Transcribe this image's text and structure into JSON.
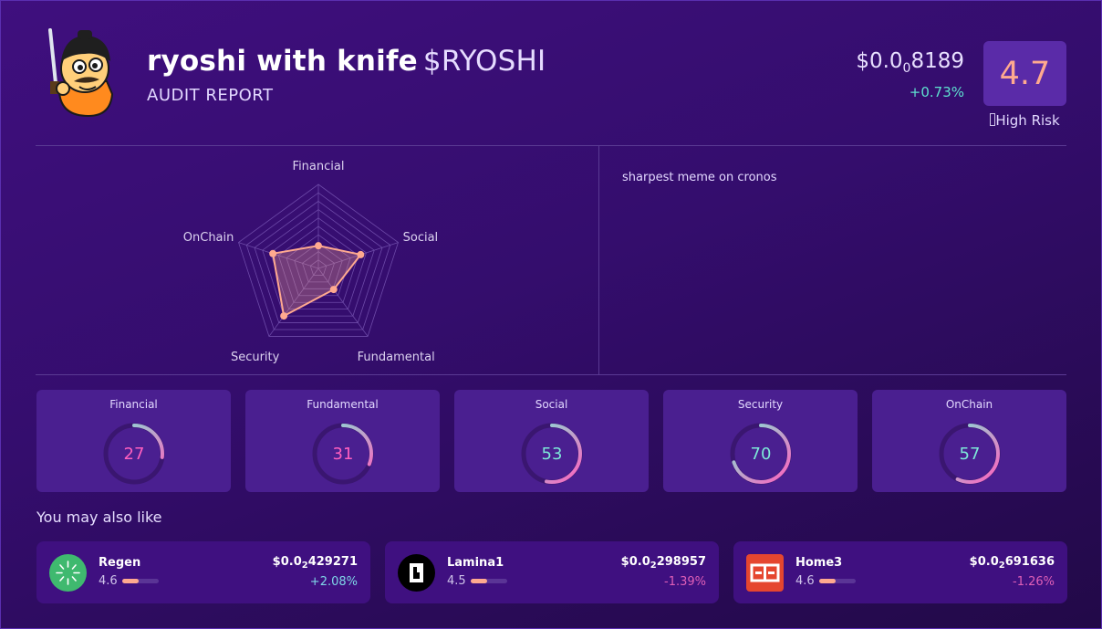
{
  "token": {
    "name": "ryoshi with knife",
    "ticker": "$RYOSHI",
    "subtitle": "AUDIT REPORT",
    "price_prefix": "$0.0",
    "price_zeros": "0",
    "price_digits": "8189",
    "change": "+0.73%",
    "score": "4.7",
    "risk": "High Risk",
    "risk_icon": "warning-icon",
    "description": "sharpest meme on cronos"
  },
  "radar": {
    "axes": [
      "Financial",
      "Social",
      "Fundamental",
      "Security",
      "OnChain"
    ],
    "values": [
      27,
      53,
      31,
      70,
      57
    ],
    "max": 100,
    "color": "#ffa98f"
  },
  "scores": [
    {
      "label": "Financial",
      "value": 27
    },
    {
      "label": "Fundamental",
      "value": 31
    },
    {
      "label": "Social",
      "value": 53
    },
    {
      "label": "Security",
      "value": 70
    },
    {
      "label": "OnChain",
      "value": 57
    }
  ],
  "recommendations_title": "You may also like",
  "recommendations": [
    {
      "name": "Regen",
      "score": "4.6",
      "score_value": 4.6,
      "price_prefix": "$0.0",
      "price_zeros": "2",
      "price_digits": "429271",
      "change": "+2.08%",
      "trend": "up",
      "icon": "regen-logo-icon"
    },
    {
      "name": "Lamina1",
      "score": "4.5",
      "score_value": 4.5,
      "price_prefix": "$0.0",
      "price_zeros": "2",
      "price_digits": "298957",
      "change": "-1.39%",
      "trend": "down",
      "icon": "lamina1-logo-icon"
    },
    {
      "name": "Home3",
      "score": "4.6",
      "score_value": 4.6,
      "price_prefix": "$0.0",
      "price_zeros": "2",
      "price_digits": "691636",
      "change": "-1.26%",
      "trend": "down",
      "icon": "home3-logo-icon"
    }
  ],
  "colors": {
    "up": "#7fd6e8",
    "down": "#e05fb7",
    "accent": "#ffa98f",
    "gauge_low": "#ff5fbf",
    "gauge_high": "#7de8d8"
  }
}
